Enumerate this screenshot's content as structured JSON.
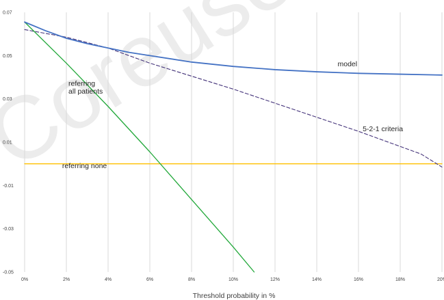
{
  "chart_data": {
    "type": "line",
    "xlabel": "Threshold probability in %",
    "ylabel": "",
    "xlim": [
      0,
      20
    ],
    "ylim": [
      -0.05,
      0.07
    ],
    "x_ticks": [
      0,
      2,
      4,
      6,
      8,
      10,
      12,
      14,
      16,
      18,
      20
    ],
    "x_tick_labels": [
      "0%",
      "2%",
      "4%",
      "6%",
      "8%",
      "10%",
      "12%",
      "14%",
      "16%",
      "18%",
      "20%"
    ],
    "y_ticks": [
      0.07,
      0.05,
      0.03,
      0.01,
      -0.01,
      -0.03,
      -0.05
    ],
    "y_tick_labels": [
      "0.07",
      "0.05",
      "0.03",
      "0.01",
      "-0.01",
      "-0.03",
      "-0.05"
    ],
    "grid": "vertical",
    "series": [
      {
        "name": "model",
        "color": "#4472c4",
        "style": "solid",
        "x": [
          0,
          1,
          2,
          3,
          4,
          5,
          6,
          8,
          10,
          12,
          14,
          16,
          18,
          20
        ],
        "y": [
          0.0655,
          0.0615,
          0.058,
          0.0555,
          0.0535,
          0.0515,
          0.05,
          0.047,
          0.045,
          0.0435,
          0.0425,
          0.0418,
          0.0414,
          0.041
        ]
      },
      {
        "name": "5-2-1 criteria",
        "color": "#44337a",
        "style": "dashed",
        "x": [
          0,
          2,
          4,
          6,
          8,
          10,
          12,
          14,
          16,
          18,
          19,
          20
        ],
        "y": [
          0.062,
          0.0585,
          0.0535,
          0.0465,
          0.0405,
          0.0345,
          0.028,
          0.0215,
          0.015,
          0.008,
          0.0045,
          -0.0015
        ]
      },
      {
        "name": "referring all patients",
        "color": "#22a83a",
        "style": "solid",
        "x": [
          0,
          2,
          4,
          6,
          8,
          10,
          11
        ],
        "y": [
          0.0655,
          0.0465,
          0.0265,
          0.0055,
          -0.0165,
          -0.0385,
          -0.05
        ]
      },
      {
        "name": "referring none",
        "color": "#ffc000",
        "style": "solid",
        "x": [
          0,
          20
        ],
        "y": [
          0,
          0
        ]
      }
    ],
    "annotations": [
      {
        "text": "model",
        "x": 15.0,
        "y": 0.045
      },
      {
        "text": "5-2-1 criteria",
        "x": 16.2,
        "y": 0.015
      },
      {
        "text": "referring",
        "x": 2.1,
        "y": 0.036
      },
      {
        "text": "all patients",
        "x": 2.1,
        "y": 0.0325
      },
      {
        "text": "referring none",
        "x": 1.8,
        "y": -0.002
      }
    ]
  }
}
